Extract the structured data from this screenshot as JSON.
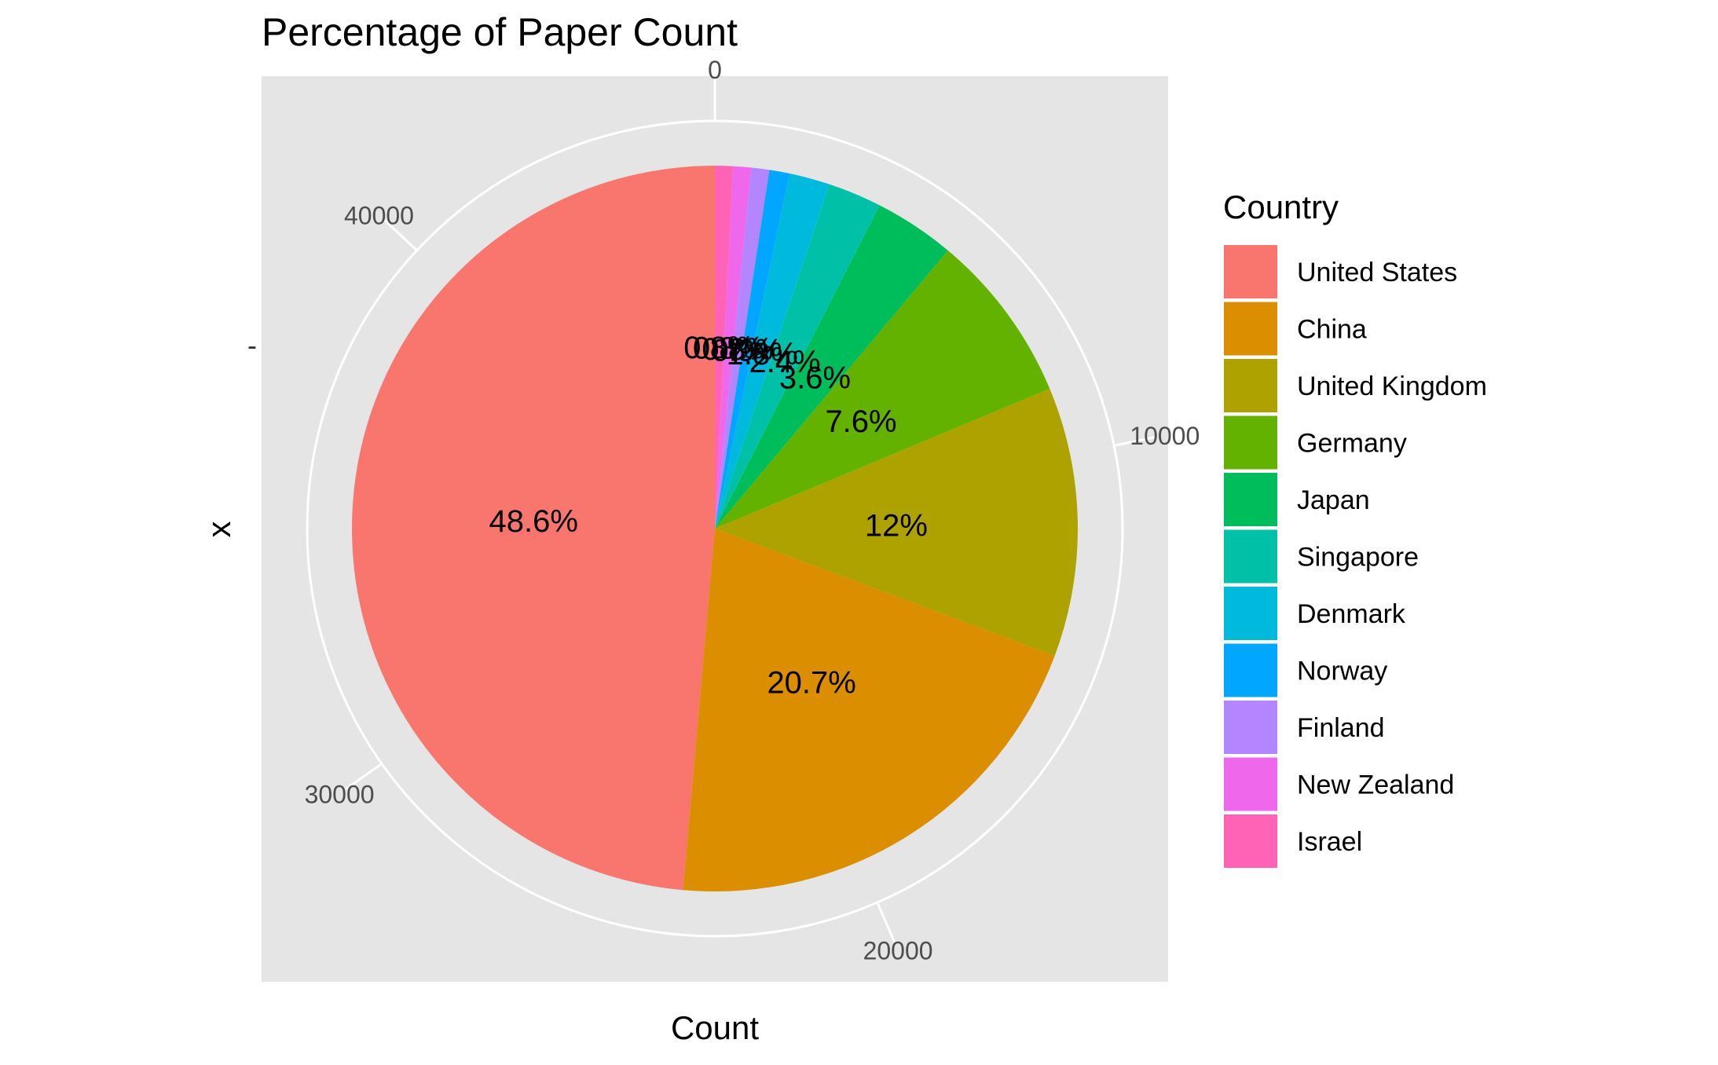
{
  "chart_data": {
    "type": "pie",
    "title": "Percentage of Paper Count",
    "xlabel": "Count",
    "ylabel": "x",
    "y_tick_label": "-",
    "legend_title": "Country",
    "legend_position": "right",
    "radial_axis": {
      "ticks": [
        0,
        10000,
        20000,
        30000,
        40000
      ],
      "tick_labels": [
        "0",
        "10000",
        "20000",
        "30000",
        "40000"
      ],
      "total": 46000
    },
    "series": [
      {
        "name": "United States",
        "percent": 48.6,
        "label": "48.6%",
        "color": "#F8766D"
      },
      {
        "name": "China",
        "percent": 20.7,
        "label": "20.7%",
        "color": "#DB8E00"
      },
      {
        "name": "United Kingdom",
        "percent": 12.0,
        "label": "12%",
        "color": "#AEA200"
      },
      {
        "name": "Germany",
        "percent": 7.6,
        "label": "7.6%",
        "color": "#64B200"
      },
      {
        "name": "Japan",
        "percent": 3.6,
        "label": "3.6%",
        "color": "#00BD5C"
      },
      {
        "name": "Singapore",
        "percent": 2.4,
        "label": "2.4%",
        "color": "#00C1A7"
      },
      {
        "name": "Denmark",
        "percent": 1.8,
        "label": "1.8%",
        "color": "#00BADE"
      },
      {
        "name": "Norway",
        "percent": 0.9,
        "label": "0.9%",
        "color": "#00A6FF"
      },
      {
        "name": "Finland",
        "percent": 0.8,
        "label": "0.8%",
        "color": "#B385FF"
      },
      {
        "name": "New Zealand",
        "percent": 0.8,
        "label": "0.8%",
        "color": "#EF67EB"
      },
      {
        "name": "Israel",
        "percent": 0.8,
        "label": "0.8%",
        "color": "#FF63B6"
      }
    ],
    "grid": true,
    "panel_background": "#E5E5E5",
    "grid_color": "#FFFFFF"
  }
}
